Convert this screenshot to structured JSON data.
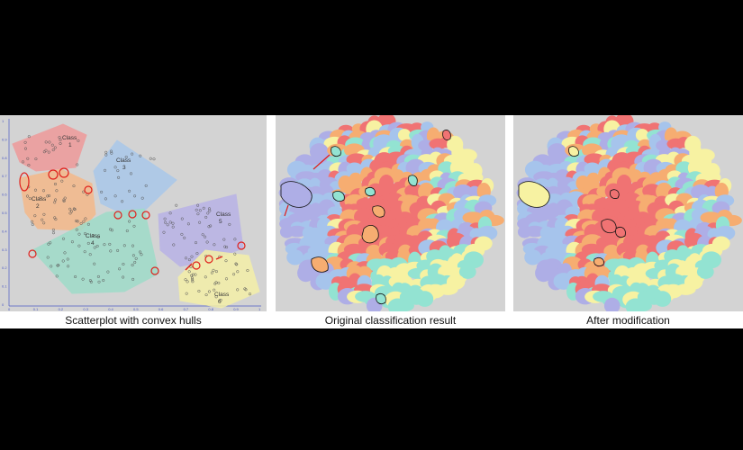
{
  "panels": [
    {
      "id": "scatterplot",
      "caption": "Scatterplot with convex hulls",
      "axis_ticks_y": [
        "1",
        "0.9",
        "0.8",
        "0.7",
        "0.6",
        "0.5",
        "0.4",
        "0.3",
        "0.2",
        "0.1",
        "0"
      ],
      "axis_ticks_x": [
        "0",
        "0.1",
        "0.2",
        "0.3",
        "0.4",
        "0.5",
        "0.6",
        "0.7",
        "0.8",
        "0.9",
        "1"
      ],
      "hulls": [
        {
          "label_line1": "Class",
          "label_line2": "1",
          "color": "#ef9a9a"
        },
        {
          "label_line1": "Class",
          "label_line2": "2",
          "color": "#f5b98a"
        },
        {
          "label_line1": "Class",
          "label_line2": "3",
          "color": "#a9c8ea"
        },
        {
          "label_line1": "Class",
          "label_line2": "4",
          "color": "#9fdcc9"
        },
        {
          "label_line1": "Class",
          "label_line2": "5",
          "color": "#b9b3e6"
        },
        {
          "label_line1": "Class",
          "label_line2": "6",
          "color": "#f4f0a8"
        }
      ]
    },
    {
      "id": "original",
      "caption": "Original classification result"
    },
    {
      "id": "modified",
      "caption": "After modification"
    }
  ],
  "colors": {
    "background_gray": "#d3d3d3",
    "red_circle": "#e0201c",
    "yellow": "#f7f2a2",
    "orange": "#f6ad71",
    "red": "#f07373",
    "teal": "#93e3d2",
    "purple": "#aeaee6",
    "blue": "#a6c4ec"
  }
}
